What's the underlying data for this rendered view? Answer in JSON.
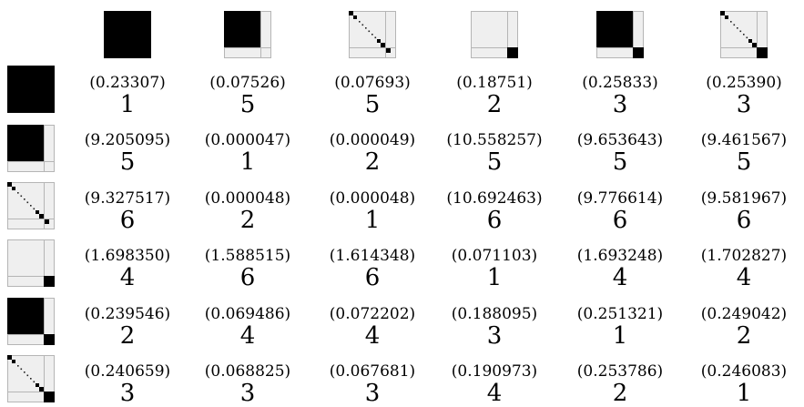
{
  "columns": [
    {
      "pattern": "full-block"
    },
    {
      "pattern": "top-left-block"
    },
    {
      "pattern": "diagonal"
    },
    {
      "pattern": "bottom-right-corner"
    },
    {
      "pattern": "block-plus-corner"
    },
    {
      "pattern": "diagonal-plus-corner"
    }
  ],
  "rows": [
    {
      "pattern": "full-block",
      "cells": [
        {
          "value": "(0.23307)",
          "rank": "1"
        },
        {
          "value": "(0.07526)",
          "rank": "5"
        },
        {
          "value": "(0.07693)",
          "rank": "5"
        },
        {
          "value": "(0.18751)",
          "rank": "2"
        },
        {
          "value": "(0.25833)",
          "rank": "3"
        },
        {
          "value": "(0.25390)",
          "rank": "3"
        }
      ]
    },
    {
      "pattern": "top-left-block",
      "cells": [
        {
          "value": "(9.205095)",
          "rank": "5"
        },
        {
          "value": "(0.000047)",
          "rank": "1"
        },
        {
          "value": "(0.000049)",
          "rank": "2"
        },
        {
          "value": "(10.558257)",
          "rank": "5"
        },
        {
          "value": "(9.653643)",
          "rank": "5"
        },
        {
          "value": "(9.461567)",
          "rank": "5"
        }
      ]
    },
    {
      "pattern": "diagonal",
      "cells": [
        {
          "value": "(9.327517)",
          "rank": "6"
        },
        {
          "value": "(0.000048)",
          "rank": "2"
        },
        {
          "value": "(0.000048)",
          "rank": "1"
        },
        {
          "value": "(10.692463)",
          "rank": "6"
        },
        {
          "value": "(9.776614)",
          "rank": "6"
        },
        {
          "value": "(9.581967)",
          "rank": "6"
        }
      ]
    },
    {
      "pattern": "bottom-right-corner",
      "cells": [
        {
          "value": "(1.698350)",
          "rank": "4"
        },
        {
          "value": "(1.588515)",
          "rank": "6"
        },
        {
          "value": "(1.614348)",
          "rank": "6"
        },
        {
          "value": "(0.071103)",
          "rank": "1"
        },
        {
          "value": "(1.693248)",
          "rank": "4"
        },
        {
          "value": "(1.702827)",
          "rank": "4"
        }
      ]
    },
    {
      "pattern": "block-plus-corner",
      "cells": [
        {
          "value": "(0.239546)",
          "rank": "2"
        },
        {
          "value": "(0.069486)",
          "rank": "4"
        },
        {
          "value": "(0.072202)",
          "rank": "4"
        },
        {
          "value": "(0.188095)",
          "rank": "3"
        },
        {
          "value": "(0.251321)",
          "rank": "1"
        },
        {
          "value": "(0.249042)",
          "rank": "2"
        }
      ]
    },
    {
      "pattern": "diagonal-plus-corner",
      "cells": [
        {
          "value": "(0.240659)",
          "rank": "3"
        },
        {
          "value": "(0.068825)",
          "rank": "3"
        },
        {
          "value": "(0.067681)",
          "rank": "3"
        },
        {
          "value": "(0.190973)",
          "rank": "4"
        },
        {
          "value": "(0.253786)",
          "rank": "2"
        },
        {
          "value": "(0.246083)",
          "rank": "1"
        }
      ]
    }
  ]
}
